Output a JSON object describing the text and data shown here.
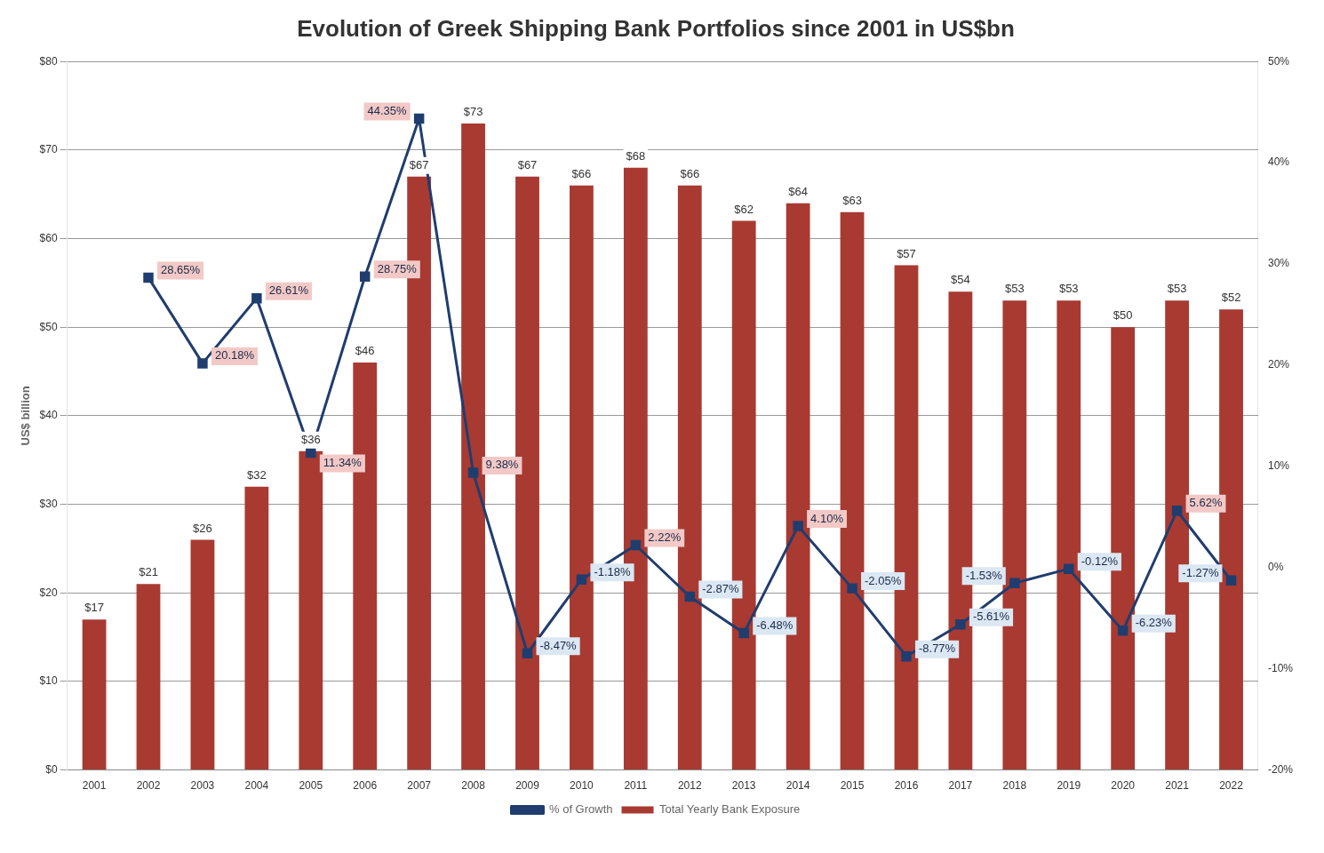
{
  "chart_data": {
    "type": "bar",
    "title": "Evolution of Greek Shipping Bank Portfolios since 2001 in US$bn",
    "ylabel": "US$ billion",
    "categories": [
      "2001",
      "2002",
      "2003",
      "2004",
      "2005",
      "2006",
      "2007",
      "2008",
      "2009",
      "2010",
      "2011",
      "2012",
      "2013",
      "2014",
      "2015",
      "2016",
      "2017",
      "2018",
      "2019",
      "2020",
      "2021",
      "2022"
    ],
    "series": [
      {
        "name": "Total Yearly Bank Exposure",
        "color": "#a83a32",
        "values": [
          17,
          21,
          26,
          32,
          36,
          46,
          67,
          73,
          67,
          66,
          68,
          66,
          62,
          64,
          63,
          57,
          54,
          53,
          53,
          50,
          53,
          52
        ],
        "value_labels": [
          "$17",
          "$21",
          "$26",
          "$32",
          "$36",
          "$46",
          "$67",
          "$73",
          "$67",
          "$66",
          "$68",
          "$66",
          "$62",
          "$64",
          "$63",
          "$57",
          "$54",
          "$53",
          "$53",
          "$50",
          "$53",
          "$52"
        ]
      },
      {
        "name": "% of Growth",
        "type": "line",
        "axis": "y2",
        "color": "#1f3d6e",
        "marker": "square",
        "line_style": "solid",
        "values": [
          null,
          28.65,
          20.18,
          26.61,
          11.34,
          28.75,
          44.35,
          9.38,
          -8.47,
          -1.18,
          2.22,
          -2.87,
          -6.48,
          4.1,
          -2.05,
          -8.77,
          -5.61,
          -1.53,
          -0.12,
          -6.23,
          5.62,
          -1.27
        ],
        "value_labels": [
          null,
          "28.65%",
          "20.18%",
          "26.61%",
          "11.34%",
          "28.75%",
          "44.35%",
          "9.38%",
          "-8.47%",
          "-1.18%",
          "2.22%",
          "-2.87%",
          "-6.48%",
          "4.10%",
          "-2.05%",
          "-8.77%",
          "-5.61%",
          "-1.53%",
          "-0.12%",
          "-6.23%",
          "5.62%",
          "-1.27%"
        ]
      }
    ],
    "ylim": [
      0,
      80
    ],
    "yticks": [
      {
        "value": 0,
        "label": "$0"
      },
      {
        "value": 10,
        "label": "$10"
      },
      {
        "value": 20,
        "label": "$20"
      },
      {
        "value": 30,
        "label": "$30"
      },
      {
        "value": 40,
        "label": "$40"
      },
      {
        "value": 50,
        "label": "$50"
      },
      {
        "value": 60,
        "label": "$60"
      },
      {
        "value": 70,
        "label": "$70"
      },
      {
        "value": 80,
        "label": "$80"
      }
    ],
    "y2lim": [
      -20,
      50
    ],
    "y2ticks": [
      {
        "value": -20,
        "label": "-20%"
      },
      {
        "value": -10,
        "label": "-10%"
      },
      {
        "value": 0,
        "label": "0%"
      },
      {
        "value": 10,
        "label": "10%"
      },
      {
        "value": 20,
        "label": "20%"
      },
      {
        "value": 30,
        "label": "30%"
      },
      {
        "value": 40,
        "label": "40%"
      },
      {
        "value": 50,
        "label": "50%"
      }
    ],
    "grid": "y",
    "legend": "bottom"
  }
}
